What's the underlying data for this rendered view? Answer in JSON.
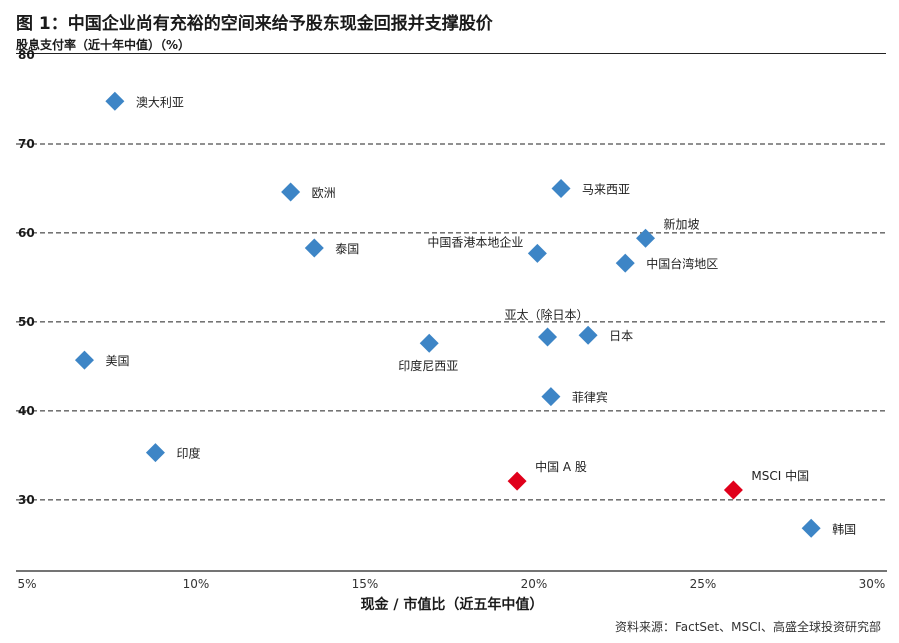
{
  "title": "图 1：中国企业尚有充裕的空间来给予股东现金回报并支撑股价",
  "source": "资料来源：FactSet、MSCI、高盛全球投资研究部",
  "chart_data": {
    "type": "scatter",
    "ylabel": "股息支付率（近十年中值）（%）",
    "xlabel": "现金 / 市值比（近五年中值）",
    "xlim": [
      5,
      30
    ],
    "ylim": [
      22,
      80
    ],
    "x_ticks": [
      5,
      10,
      15,
      20,
      25,
      30
    ],
    "x_tick_labels": [
      "5%",
      "10%",
      "15%",
      "20%",
      "25%",
      "30%"
    ],
    "y_ticks": [
      30,
      40,
      50,
      60,
      70,
      80
    ],
    "y_tick_labels": [
      "30",
      "40",
      "50",
      "60",
      "70",
      "80"
    ],
    "gridlines": "horizontal dashed",
    "colors": {
      "default": "#3d85c6",
      "highlight": "#e0001b"
    },
    "points": [
      {
        "label": "澳大利亚",
        "x": 7.6,
        "y": 74.8,
        "highlight": false,
        "label_pos": "right"
      },
      {
        "label": "欧洲",
        "x": 12.8,
        "y": 64.6,
        "highlight": false,
        "label_pos": "right"
      },
      {
        "label": "泰国",
        "x": 13.5,
        "y": 58.3,
        "highlight": false,
        "label_pos": "right"
      },
      {
        "label": "马来西亚",
        "x": 20.8,
        "y": 65.0,
        "highlight": false,
        "label_pos": "right"
      },
      {
        "label": "新加坡",
        "x": 23.3,
        "y": 59.4,
        "highlight": false,
        "label_pos": "above-right"
      },
      {
        "label": "中国香港本地企业",
        "x": 20.1,
        "y": 57.7,
        "highlight": false,
        "label_pos": "above-left"
      },
      {
        "label": "中国台湾地区",
        "x": 22.7,
        "y": 56.6,
        "highlight": false,
        "label_pos": "right"
      },
      {
        "label": "亚太（除日本）",
        "x": 20.4,
        "y": 48.3,
        "highlight": false,
        "label_pos": "above"
      },
      {
        "label": "日本",
        "x": 21.6,
        "y": 48.5,
        "highlight": false,
        "label_pos": "right"
      },
      {
        "label": "印度尼西亚",
        "x": 16.9,
        "y": 47.6,
        "highlight": false,
        "label_pos": "below"
      },
      {
        "label": "美国",
        "x": 6.7,
        "y": 45.7,
        "highlight": false,
        "label_pos": "right"
      },
      {
        "label": "菲律宾",
        "x": 20.5,
        "y": 41.6,
        "highlight": false,
        "label_pos": "right"
      },
      {
        "label": "印度",
        "x": 8.8,
        "y": 35.3,
        "highlight": false,
        "label_pos": "right"
      },
      {
        "label": "中国 A 股",
        "x": 19.5,
        "y": 32.1,
        "highlight": true,
        "label_pos": "above-right"
      },
      {
        "label": "MSCI 中国",
        "x": 25.9,
        "y": 31.1,
        "highlight": true,
        "label_pos": "above-right"
      },
      {
        "label": "韩国",
        "x": 28.2,
        "y": 26.8,
        "highlight": false,
        "label_pos": "right"
      }
    ]
  }
}
